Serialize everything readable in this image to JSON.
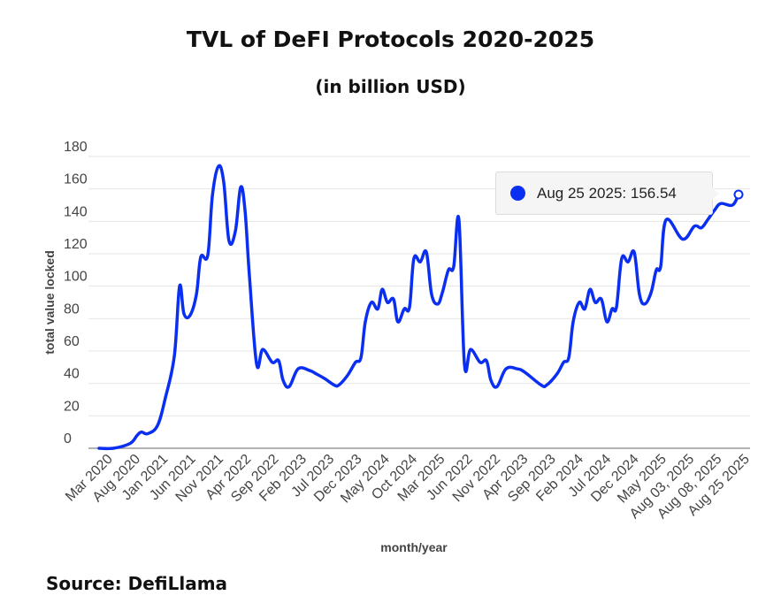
{
  "title": "TVL of DeFI Protocols 2020-2025",
  "subtitle": "(in billion USD)",
  "source": "Source: DefiLlama",
  "tooltip": {
    "text": "Aug 25 2025: 156.54"
  },
  "colors": {
    "line": "#0a2ff0",
    "grid": "#e6e6e6",
    "axis": "#999999"
  },
  "chart_data": {
    "type": "line",
    "title": "TVL of DeFI Protocols 2020-2025",
    "subtitle": "(in billion USD)",
    "xlabel": "month/year",
    "ylabel": "total value locked",
    "ylim": [
      0,
      180
    ],
    "yticks": [
      "0",
      "20",
      "40",
      "60",
      "80",
      "100",
      "120",
      "140",
      "160",
      "180"
    ],
    "grid": true,
    "categories": [
      "Mar 2020",
      "Aug 2020",
      "Jan 2021",
      "Jun 2021",
      "Nov 2021",
      "Apr 2022",
      "Sep 2022",
      "Feb 2023",
      "Jul 2023",
      "Dec 2023",
      "May 2024",
      "Oct 2024",
      "Mar 2025",
      "Jun 2022",
      "Nov 2022",
      "Apr 2023",
      "Sep 2023",
      "Feb 2024",
      "Jul 2024",
      "Dec 2024",
      "May 2025",
      "Aug 03, 2025",
      "Aug 08, 2025",
      "Aug 25 2025"
    ],
    "points": [
      [
        0,
        0
      ],
      [
        0.49,
        0
      ],
      [
        1.07,
        3
      ],
      [
        1.31,
        8
      ],
      [
        1.46,
        10
      ],
      [
        1.67,
        9
      ],
      [
        2.01,
        14
      ],
      [
        2.28,
        31
      ],
      [
        2.59,
        57
      ],
      [
        2.77,
        100
      ],
      [
        2.92,
        83
      ],
      [
        3.13,
        82
      ],
      [
        3.35,
        95
      ],
      [
        3.5,
        118
      ],
      [
        3.74,
        119
      ],
      [
        3.9,
        156
      ],
      [
        4.11,
        174
      ],
      [
        4.29,
        164
      ],
      [
        4.47,
        128
      ],
      [
        4.69,
        134
      ],
      [
        4.87,
        161
      ],
      [
        5.02,
        147
      ],
      [
        5.17,
        107
      ],
      [
        5.42,
        52
      ],
      [
        5.63,
        61
      ],
      [
        5.96,
        53
      ],
      [
        6.18,
        54
      ],
      [
        6.33,
        42
      ],
      [
        6.54,
        38
      ],
      [
        6.85,
        49
      ],
      [
        7.24,
        48
      ],
      [
        7.46,
        46
      ],
      [
        7.76,
        43
      ],
      [
        8.09,
        39
      ],
      [
        8.25,
        39
      ],
      [
        8.55,
        45
      ],
      [
        8.82,
        53
      ],
      [
        9.01,
        56
      ],
      [
        9.16,
        78
      ],
      [
        9.37,
        90
      ],
      [
        9.59,
        86
      ],
      [
        9.74,
        98
      ],
      [
        9.92,
        90
      ],
      [
        10.13,
        92
      ],
      [
        10.28,
        78
      ],
      [
        10.5,
        86
      ],
      [
        10.68,
        87
      ],
      [
        10.83,
        117
      ],
      [
        11.05,
        115
      ],
      [
        11.26,
        121
      ],
      [
        11.44,
        95
      ],
      [
        11.65,
        89
      ],
      [
        11.81,
        96
      ],
      [
        12.02,
        110
      ],
      [
        12.2,
        112
      ],
      [
        12.38,
        141
      ],
      [
        12.57,
        52
      ],
      [
        12.78,
        61
      ],
      [
        13.11,
        53
      ],
      [
        13.33,
        54
      ],
      [
        13.48,
        42
      ],
      [
        13.69,
        38
      ],
      [
        14.0,
        49
      ],
      [
        14.39,
        49
      ],
      [
        14.64,
        47
      ],
      [
        15.21,
        39
      ],
      [
        15.4,
        39
      ],
      [
        15.76,
        46
      ],
      [
        15.98,
        53
      ],
      [
        16.16,
        56
      ],
      [
        16.31,
        78
      ],
      [
        16.52,
        90
      ],
      [
        16.71,
        86
      ],
      [
        16.89,
        98
      ],
      [
        17.07,
        90
      ],
      [
        17.28,
        92
      ],
      [
        17.47,
        78
      ],
      [
        17.65,
        86
      ],
      [
        17.8,
        87
      ],
      [
        17.98,
        117
      ],
      [
        18.2,
        115
      ],
      [
        18.41,
        121
      ],
      [
        18.59,
        95
      ],
      [
        18.77,
        89
      ],
      [
        18.99,
        96
      ],
      [
        19.17,
        110
      ],
      [
        19.32,
        112
      ],
      [
        19.51,
        141
      ],
      [
        20.08,
        129
      ],
      [
        20.48,
        137
      ],
      [
        20.72,
        136
      ],
      [
        20.94,
        141
      ],
      [
        21.18,
        147
      ],
      [
        21.39,
        151
      ],
      [
        21.79,
        150
      ],
      [
        22,
        156.54
      ]
    ],
    "highlight": {
      "label": "Aug 25 2025",
      "value": 156.54
    }
  }
}
